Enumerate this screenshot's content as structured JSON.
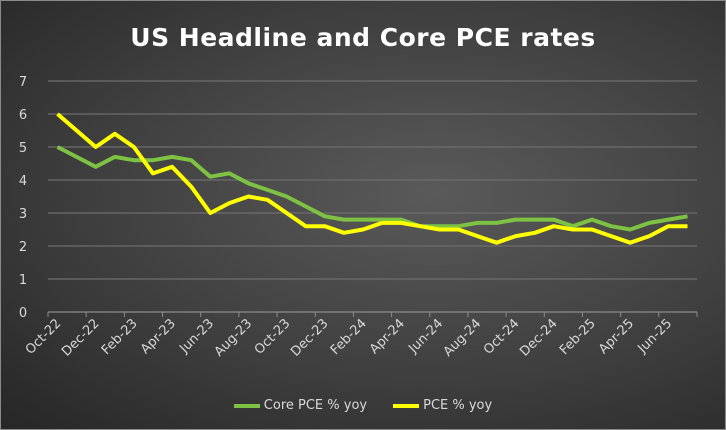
{
  "chart_data": {
    "type": "line",
    "title": "US Headline and Core PCE rates",
    "xlabel": "",
    "ylabel": "",
    "ylim": [
      0,
      7
    ],
    "yticks": [
      "0",
      "1",
      "2",
      "3",
      "4",
      "5",
      "6",
      "7"
    ],
    "grid": true,
    "legend_position": "bottom",
    "x": [
      "Oct-22",
      "Nov-22",
      "Dec-22",
      "Jan-23",
      "Feb-23",
      "Mar-23",
      "Apr-23",
      "May-23",
      "Jun-23",
      "Jul-23",
      "Aug-23",
      "Sep-23",
      "Oct-23",
      "Nov-23",
      "Dec-23",
      "Jan-24",
      "Feb-24",
      "Mar-24",
      "Apr-24",
      "May-24",
      "Jun-24",
      "Jul-24",
      "Aug-24",
      "Sep-24",
      "Oct-24",
      "Nov-24",
      "Dec-24",
      "Jan-25",
      "Feb-25",
      "Mar-25",
      "Apr-25",
      "May-25",
      "Jun-25",
      "Jul-25"
    ],
    "xtick_labels": [
      "Oct-22",
      "Dec-22",
      "Feb-23",
      "Apr-23",
      "Jun-23",
      "Aug-23",
      "Oct-23",
      "Dec-23",
      "Feb-24",
      "Apr-24",
      "Jun-24",
      "Aug-24",
      "Oct-24",
      "Dec-24",
      "Feb-25",
      "Apr-25",
      "Jun-25"
    ],
    "series": [
      {
        "name": "Core PCE % yoy",
        "color": "#7dc242",
        "values": [
          5.0,
          4.7,
          4.4,
          4.7,
          4.6,
          4.6,
          4.7,
          4.6,
          4.1,
          4.2,
          3.9,
          3.7,
          3.5,
          3.2,
          2.9,
          2.8,
          2.8,
          2.8,
          2.8,
          2.6,
          2.6,
          2.6,
          2.7,
          2.7,
          2.8,
          2.8,
          2.8,
          2.6,
          2.8,
          2.6,
          2.5,
          2.7,
          2.8,
          2.9
        ]
      },
      {
        "name": "PCE % yoy",
        "color": "#ffff00",
        "values": [
          6.0,
          5.5,
          5.0,
          5.4,
          5.0,
          4.2,
          4.4,
          3.8,
          3.0,
          3.3,
          3.5,
          3.4,
          3.0,
          2.6,
          2.6,
          2.4,
          2.5,
          2.7,
          2.7,
          2.6,
          2.5,
          2.5,
          2.3,
          2.1,
          2.3,
          2.4,
          2.6,
          2.5,
          2.5,
          2.3,
          2.1,
          2.3,
          2.6,
          2.6
        ]
      }
    ]
  }
}
